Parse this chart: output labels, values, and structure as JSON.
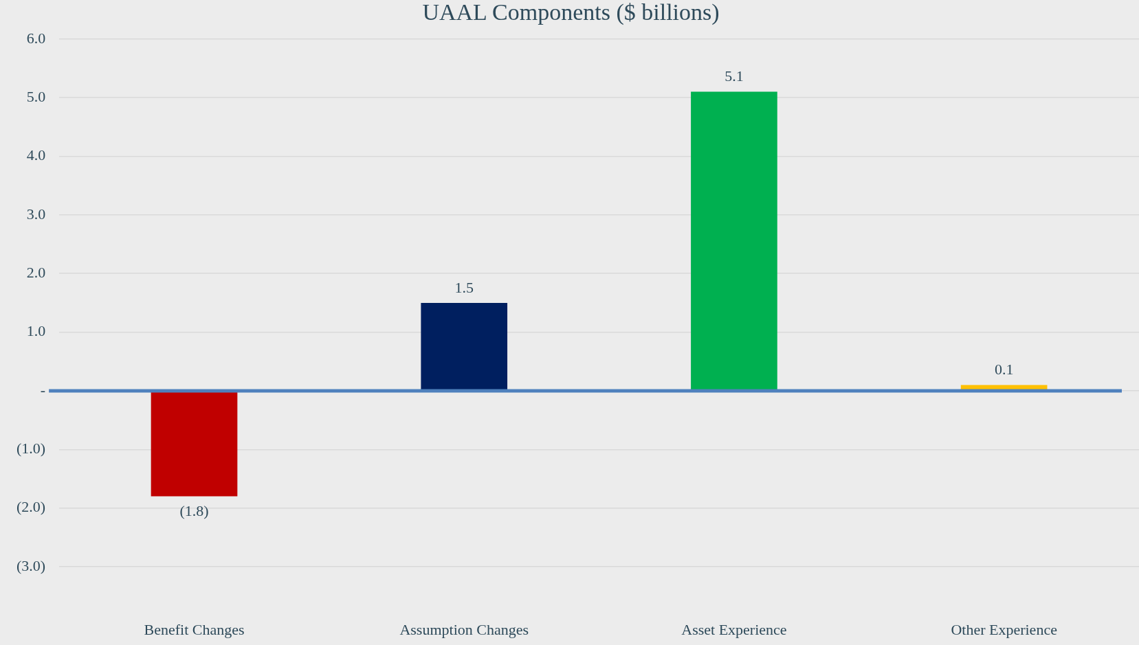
{
  "chart_data": {
    "type": "bar",
    "title": "UAAL Components ($ billions)",
    "categories": [
      "Benefit Changes",
      "Assumption Changes",
      "Asset Experience",
      "Other Experience"
    ],
    "values": [
      -1.8,
      1.5,
      5.1,
      0.1
    ],
    "colors": [
      "#c00000",
      "#001f5f",
      "#00b050",
      "#ffc000"
    ],
    "value_labels": [
      "(1.8)",
      "1.5",
      "5.1",
      "0.1"
    ],
    "ylim": [
      -3.0,
      6.0
    ],
    "yticks": [
      {
        "value": -3,
        "label": "(3.0)"
      },
      {
        "value": -2,
        "label": "(2.0)"
      },
      {
        "value": -1,
        "label": "(1.0)"
      },
      {
        "value": 0,
        "label": "-"
      },
      {
        "value": 1,
        "label": "1.0"
      },
      {
        "value": 2,
        "label": "2.0"
      },
      {
        "value": 3,
        "label": "3.0"
      },
      {
        "value": 4,
        "label": "4.0"
      },
      {
        "value": 5,
        "label": "5.0"
      },
      {
        "value": 6,
        "label": "6.0"
      }
    ],
    "ref_lines": [
      {
        "axis": "y",
        "value": 0,
        "color": "#4f81bd"
      }
    ],
    "grid": "y",
    "legend": false
  }
}
